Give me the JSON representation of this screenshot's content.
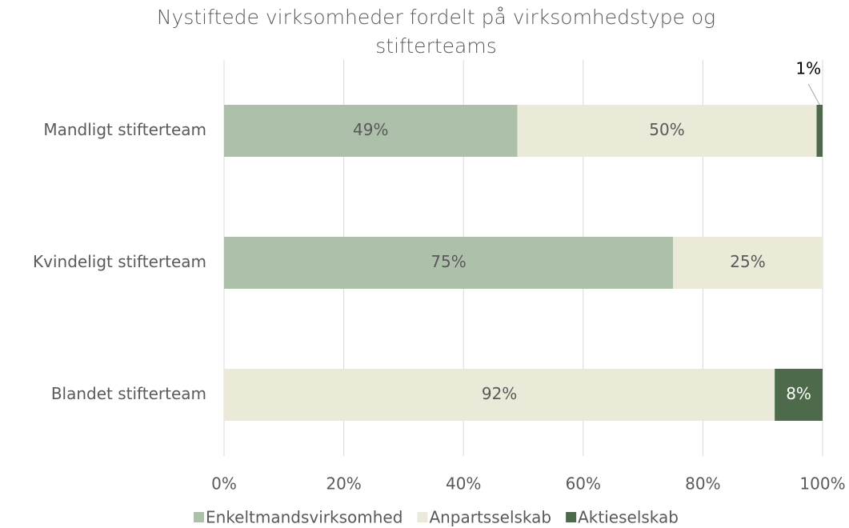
{
  "chart_data": {
    "type": "stacked-bar-horizontal",
    "title": "Nystiftede virksomheder fordelt på virksomhedstype og stifterteams",
    "categories": [
      "Mandligt stifterteam",
      "Kvindeligt stifterteam",
      "Blandet stifterteam"
    ],
    "series": [
      {
        "name": "Enkeltmandsvirksomhed",
        "color": "#adc0aa",
        "values": [
          49,
          75,
          null
        ],
        "value_labels": [
          "49%",
          "75%",
          null
        ]
      },
      {
        "name": "Anpartsselskab",
        "color": "#ebe9d8",
        "values": [
          50,
          25,
          92
        ],
        "value_labels": [
          "50%",
          "25%",
          "92%"
        ]
      },
      {
        "name": "Aktieselskab",
        "color": "#4d6b4a",
        "values": [
          1,
          null,
          8
        ],
        "value_labels": [
          "1%",
          null,
          "8%"
        ]
      }
    ],
    "xlim": [
      0,
      100
    ],
    "xticks": [
      {
        "value": 0,
        "label": "0%"
      },
      {
        "value": 20,
        "label": "20%"
      },
      {
        "value": 40,
        "label": "40%"
      },
      {
        "value": 60,
        "label": "60%"
      },
      {
        "value": 80,
        "label": "80%"
      },
      {
        "value": 100,
        "label": "100%"
      }
    ],
    "grid": true,
    "legend": "bottom"
  }
}
